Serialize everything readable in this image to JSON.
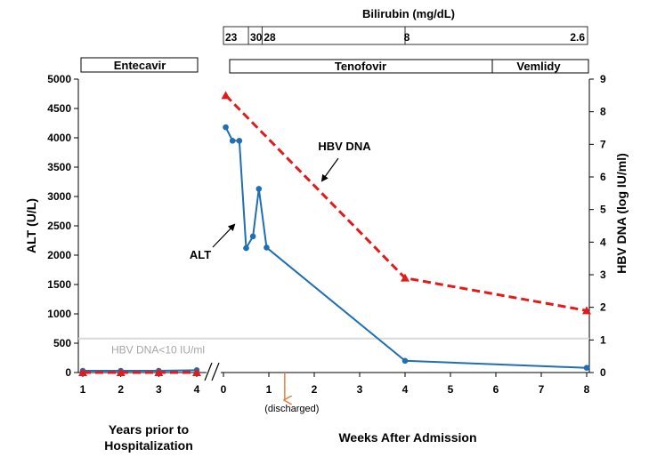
{
  "chart_data": {
    "type": "line",
    "bilirubin": {
      "title": "Bilirubin (mg/dL)",
      "marks": [
        {
          "label": "23",
          "week": 0
        },
        {
          "label": "30",
          "week": 0.55
        },
        {
          "label": "28",
          "week": 0.85
        },
        {
          "label": "8",
          "week": 4
        },
        {
          "label": "2.6",
          "week": 8
        }
      ]
    },
    "therapy": [
      {
        "label": "Entecavir",
        "start": "years-1",
        "end": "years-4"
      },
      {
        "label": "Tenofovir",
        "start_week": 0,
        "end_week": 6
      },
      {
        "label": "Vemlidy",
        "start_week": 6,
        "end_week": 8
      }
    ],
    "left_axis": {
      "title": "ALT (U/L)",
      "min": 0,
      "max": 5000,
      "step": 500,
      "ticks": [
        "0",
        "500",
        "1000",
        "1500",
        "2000",
        "2500",
        "3000",
        "3500",
        "4000",
        "4500",
        "5000"
      ]
    },
    "right_axis": {
      "title": "HBV DNA (log IU/ml)",
      "min": 0,
      "max": 9,
      "step": 1,
      "ticks": [
        "0",
        "1",
        "2",
        "3",
        "4",
        "5",
        "6",
        "7",
        "8",
        "9"
      ]
    },
    "x_years": {
      "title": "Years prior to Hospitalization",
      "ticks": [
        "1",
        "2",
        "3",
        "4"
      ]
    },
    "x_weeks": {
      "title": "Weeks After Admission",
      "min": 0,
      "max": 8,
      "ticks": [
        "0",
        "1",
        "2",
        "3",
        "4",
        "5",
        "6",
        "7",
        "8"
      ]
    },
    "series": [
      {
        "name": "ALT",
        "axis": "left",
        "color": "#1f6fb5",
        "years_points": [
          [
            1,
            30
          ],
          [
            2,
            30
          ],
          [
            3,
            30
          ],
          [
            4,
            40
          ]
        ],
        "weeks_points": [
          [
            0.05,
            4180
          ],
          [
            0.2,
            3950
          ],
          [
            0.35,
            3950
          ],
          [
            0.5,
            2120
          ],
          [
            0.65,
            2320
          ],
          [
            0.78,
            3130
          ],
          [
            0.95,
            2130
          ],
          [
            4,
            200
          ],
          [
            8,
            80
          ]
        ]
      },
      {
        "name": "HBV DNA",
        "axis": "right",
        "color": "#e31a1c",
        "years_points": [
          [
            1,
            0
          ],
          [
            2,
            0
          ],
          [
            3,
            0
          ],
          [
            4,
            0
          ]
        ],
        "weeks_points": [
          [
            0.05,
            8.5
          ],
          [
            4,
            2.9
          ],
          [
            8,
            1.9
          ]
        ]
      }
    ],
    "threshold": {
      "label": "HBV DNA<10 IU/ml",
      "value": 580
    },
    "annotation_discharged": {
      "label": "(discharged)",
      "week": 1.35
    }
  }
}
